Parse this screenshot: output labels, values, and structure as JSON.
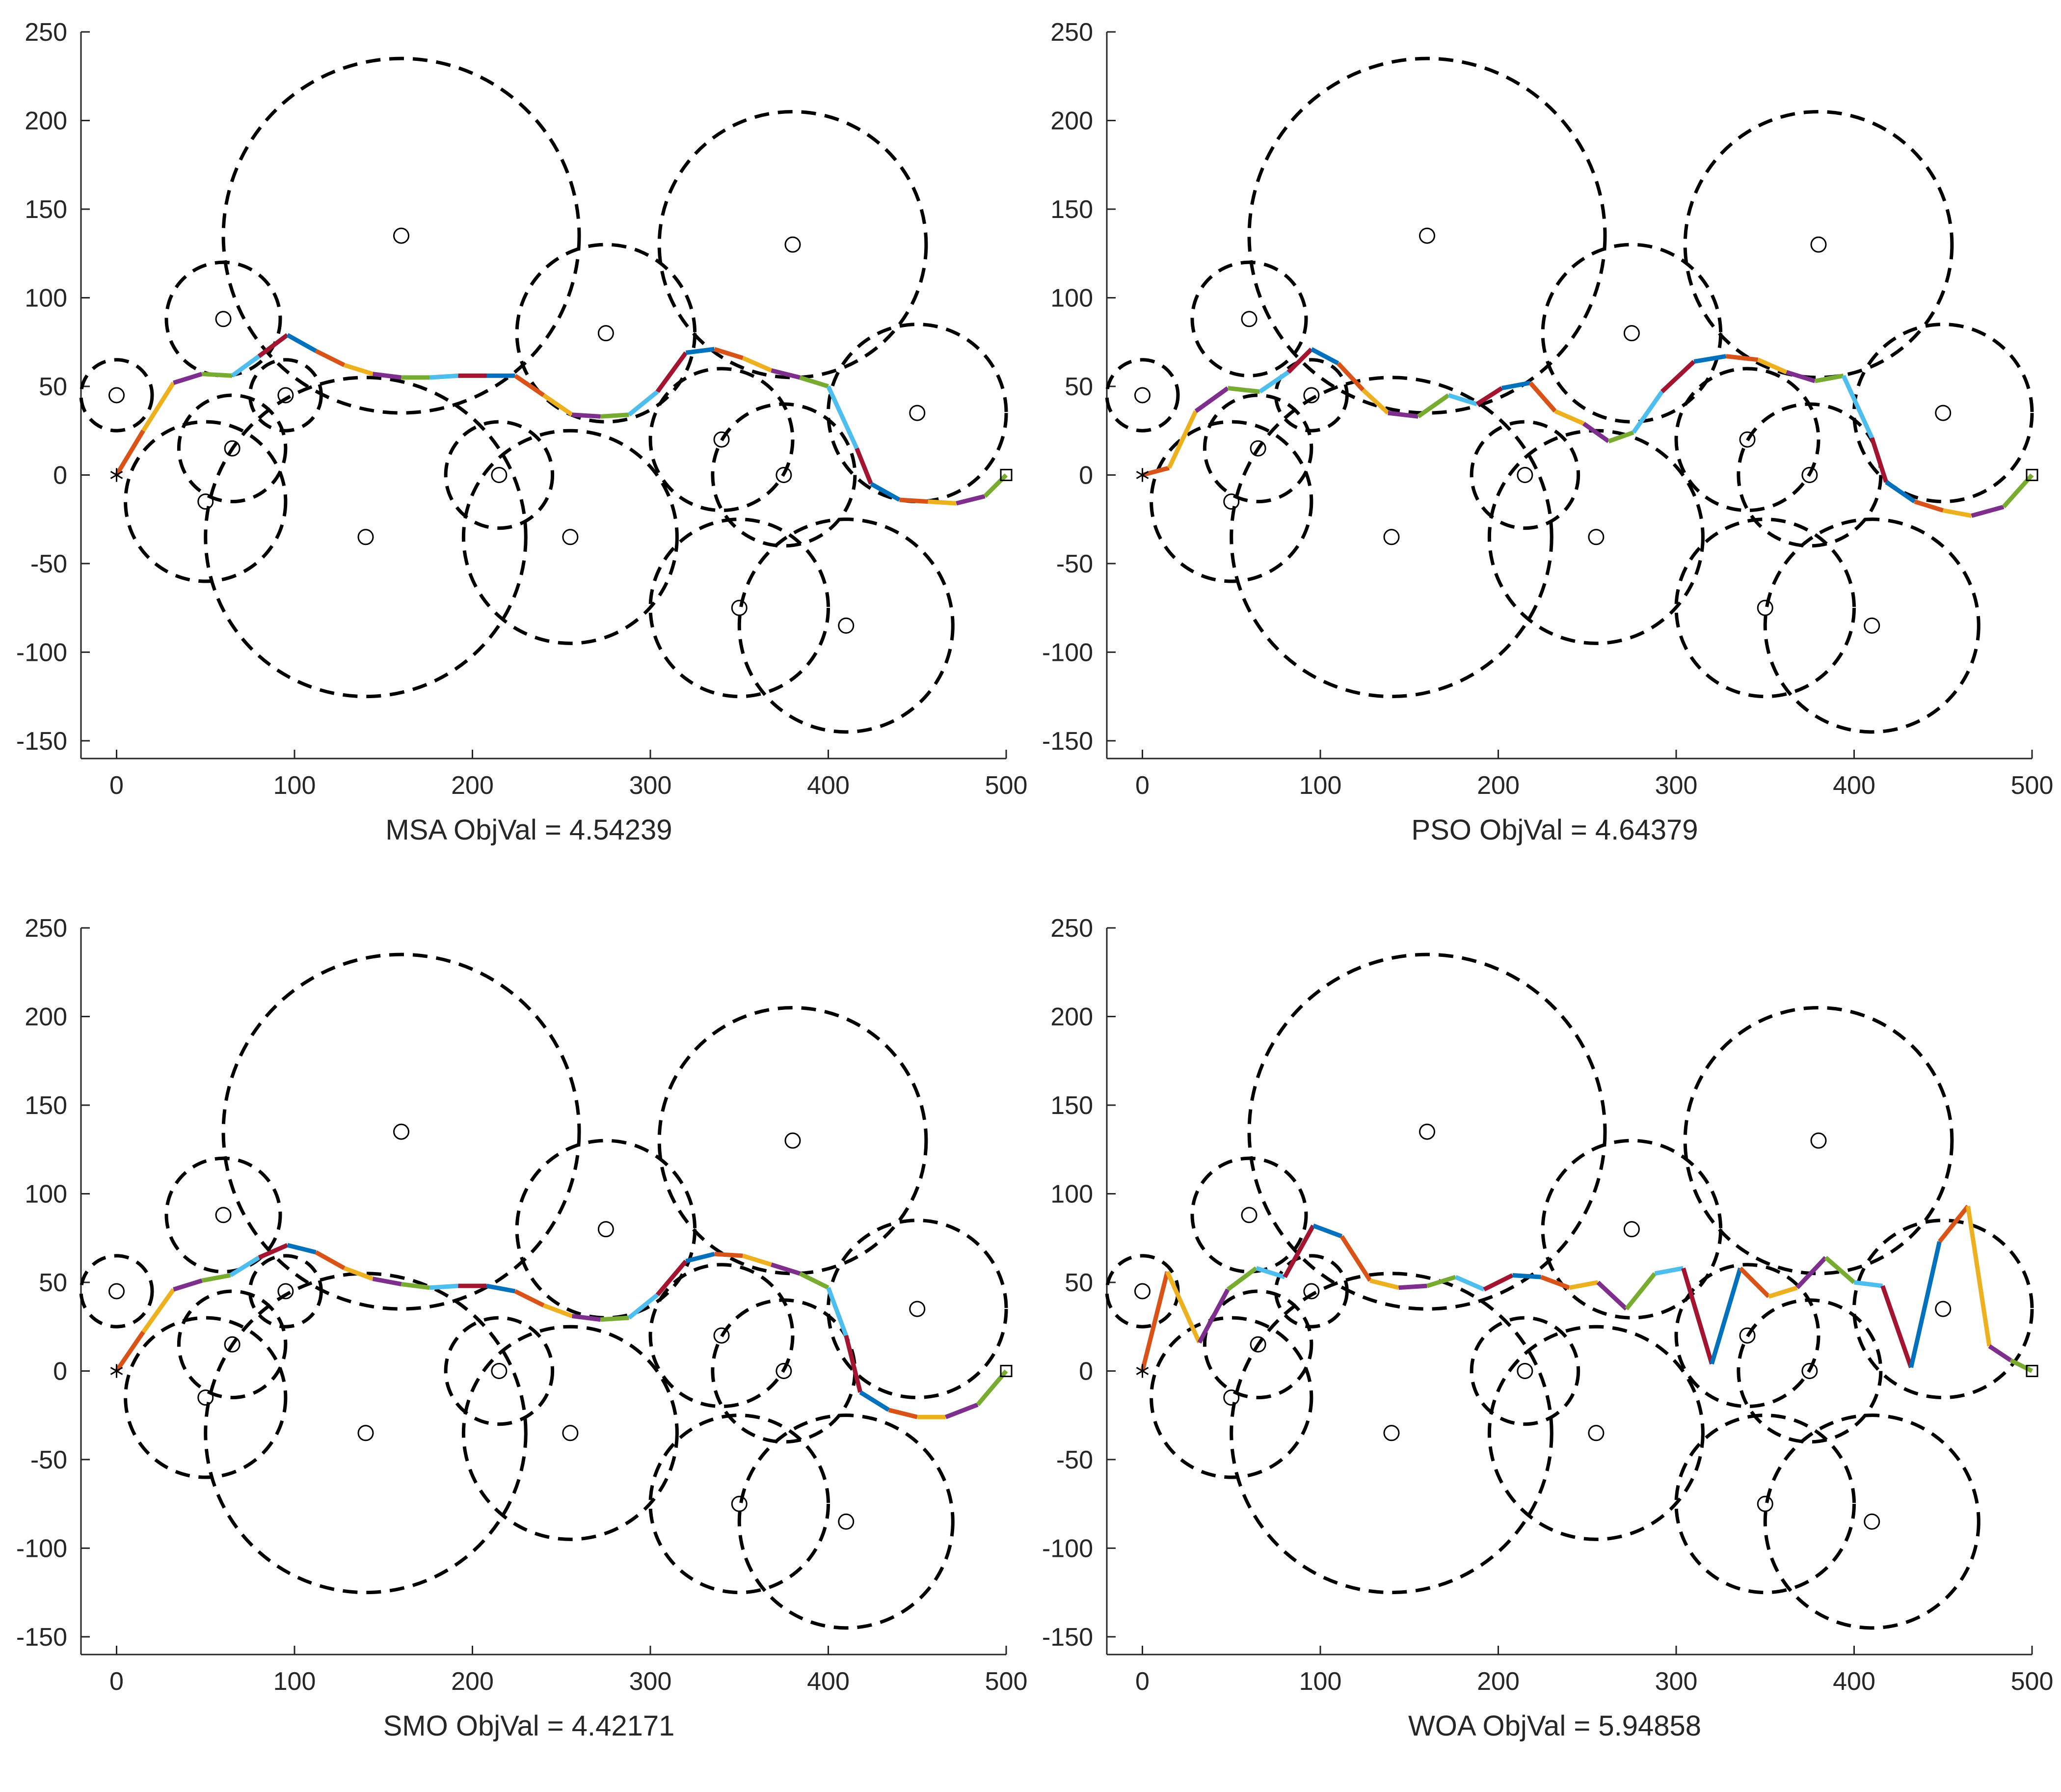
{
  "colors": {
    "segment_palette": [
      "#0072BD",
      "#D95319",
      "#EDB120",
      "#7E2F8E",
      "#77AC30",
      "#4DBEEE",
      "#A2142F"
    ],
    "circle": "#000000",
    "axis": "#262626"
  },
  "chart_data": [
    {
      "type": "line",
      "algorithm": "MSA",
      "objval": "4.54239",
      "xlabel": "MSA  ObjVal = 4.54239",
      "xlim": [
        -20,
        500
      ],
      "ylim": [
        -160,
        250
      ],
      "xticks": [
        0,
        100,
        200,
        300,
        400,
        500
      ],
      "yticks": [
        -150,
        -100,
        -50,
        0,
        50,
        100,
        150,
        200,
        250
      ],
      "start": [
        0,
        0
      ],
      "goal": [
        500,
        0
      ],
      "obstacles": [
        {
          "x": 0,
          "y": 45,
          "r": 20
        },
        {
          "x": 60,
          "y": 88,
          "r": 32
        },
        {
          "x": 50,
          "y": -15,
          "r": 45
        },
        {
          "x": 65,
          "y": 15,
          "r": 30
        },
        {
          "x": 95,
          "y": 45,
          "r": 20
        },
        {
          "x": 140,
          "y": -35,
          "r": 90
        },
        {
          "x": 160,
          "y": 135,
          "r": 100
        },
        {
          "x": 215,
          "y": 0,
          "r": 30
        },
        {
          "x": 255,
          "y": -35,
          "r": 60
        },
        {
          "x": 275,
          "y": 80,
          "r": 50
        },
        {
          "x": 340,
          "y": 20,
          "r": 40
        },
        {
          "x": 350,
          "y": -75,
          "r": 50
        },
        {
          "x": 375,
          "y": 0,
          "r": 40
        },
        {
          "x": 380,
          "y": 130,
          "r": 75
        },
        {
          "x": 410,
          "y": -85,
          "r": 60
        },
        {
          "x": 450,
          "y": 35,
          "r": 50
        }
      ],
      "path": [
        {
          "x": 0,
          "y": 0
        },
        {
          "x": 15,
          "y": 25
        },
        {
          "x": 32,
          "y": 52
        },
        {
          "x": 48,
          "y": 57
        },
        {
          "x": 65,
          "y": 56
        },
        {
          "x": 80,
          "y": 67
        },
        {
          "x": 96,
          "y": 79
        },
        {
          "x": 112,
          "y": 70
        },
        {
          "x": 128,
          "y": 62
        },
        {
          "x": 144,
          "y": 57
        },
        {
          "x": 160,
          "y": 55
        },
        {
          "x": 176,
          "y": 55
        },
        {
          "x": 192,
          "y": 56
        },
        {
          "x": 208,
          "y": 56
        },
        {
          "x": 224,
          "y": 56
        },
        {
          "x": 240,
          "y": 45
        },
        {
          "x": 256,
          "y": 34
        },
        {
          "x": 272,
          "y": 33
        },
        {
          "x": 288,
          "y": 34
        },
        {
          "x": 304,
          "y": 47
        },
        {
          "x": 320,
          "y": 69
        },
        {
          "x": 336,
          "y": 71
        },
        {
          "x": 352,
          "y": 66
        },
        {
          "x": 368,
          "y": 59
        },
        {
          "x": 384,
          "y": 55
        },
        {
          "x": 400,
          "y": 50
        },
        {
          "x": 416,
          "y": 15
        },
        {
          "x": 424,
          "y": -5
        },
        {
          "x": 440,
          "y": -14
        },
        {
          "x": 456,
          "y": -15
        },
        {
          "x": 472,
          "y": -16
        },
        {
          "x": 488,
          "y": -12
        },
        {
          "x": 500,
          "y": 0
        }
      ]
    },
    {
      "type": "line",
      "algorithm": "PSO",
      "objval": "4.64379",
      "xlabel": "PSO  ObjVal = 4.64379",
      "xlim": [
        -20,
        500
      ],
      "ylim": [
        -160,
        250
      ],
      "xticks": [
        0,
        100,
        200,
        300,
        400,
        500
      ],
      "yticks": [
        -150,
        -100,
        -50,
        0,
        50,
        100,
        150,
        200,
        250
      ],
      "start": [
        0,
        0
      ],
      "goal": [
        500,
        0
      ],
      "obstacles": [
        {
          "x": 0,
          "y": 45,
          "r": 20
        },
        {
          "x": 60,
          "y": 88,
          "r": 32
        },
        {
          "x": 50,
          "y": -15,
          "r": 45
        },
        {
          "x": 65,
          "y": 15,
          "r": 30
        },
        {
          "x": 95,
          "y": 45,
          "r": 20
        },
        {
          "x": 140,
          "y": -35,
          "r": 90
        },
        {
          "x": 160,
          "y": 135,
          "r": 100
        },
        {
          "x": 215,
          "y": 0,
          "r": 30
        },
        {
          "x": 255,
          "y": -35,
          "r": 60
        },
        {
          "x": 275,
          "y": 80,
          "r": 50
        },
        {
          "x": 340,
          "y": 20,
          "r": 40
        },
        {
          "x": 350,
          "y": -75,
          "r": 50
        },
        {
          "x": 375,
          "y": 0,
          "r": 40
        },
        {
          "x": 380,
          "y": 130,
          "r": 75
        },
        {
          "x": 410,
          "y": -85,
          "r": 60
        },
        {
          "x": 450,
          "y": 35,
          "r": 50
        }
      ],
      "path": [
        {
          "x": 0,
          "y": 0
        },
        {
          "x": 15,
          "y": 4
        },
        {
          "x": 30,
          "y": 36
        },
        {
          "x": 48,
          "y": 49
        },
        {
          "x": 66,
          "y": 47
        },
        {
          "x": 82,
          "y": 58
        },
        {
          "x": 95,
          "y": 71
        },
        {
          "x": 110,
          "y": 63
        },
        {
          "x": 124,
          "y": 48
        },
        {
          "x": 138,
          "y": 35
        },
        {
          "x": 155,
          "y": 33
        },
        {
          "x": 172,
          "y": 45
        },
        {
          "x": 188,
          "y": 40
        },
        {
          "x": 202,
          "y": 49
        },
        {
          "x": 218,
          "y": 52
        },
        {
          "x": 232,
          "y": 36
        },
        {
          "x": 248,
          "y": 29
        },
        {
          "x": 262,
          "y": 19
        },
        {
          "x": 276,
          "y": 24
        },
        {
          "x": 292,
          "y": 47
        },
        {
          "x": 310,
          "y": 64
        },
        {
          "x": 328,
          "y": 67
        },
        {
          "x": 346,
          "y": 65
        },
        {
          "x": 362,
          "y": 58
        },
        {
          "x": 378,
          "y": 53
        },
        {
          "x": 394,
          "y": 56
        },
        {
          "x": 410,
          "y": 21
        },
        {
          "x": 418,
          "y": -4
        },
        {
          "x": 434,
          "y": -15
        },
        {
          "x": 450,
          "y": -20
        },
        {
          "x": 466,
          "y": -23
        },
        {
          "x": 484,
          "y": -18
        },
        {
          "x": 500,
          "y": 0
        }
      ]
    },
    {
      "type": "line",
      "algorithm": "SMO",
      "objval": "4.42171",
      "xlabel": "SMO  ObjVal = 4.42171",
      "xlim": [
        -20,
        500
      ],
      "ylim": [
        -160,
        250
      ],
      "xticks": [
        0,
        100,
        200,
        300,
        400,
        500
      ],
      "yticks": [
        -150,
        -100,
        -50,
        0,
        50,
        100,
        150,
        200,
        250
      ],
      "start": [
        0,
        0
      ],
      "goal": [
        500,
        0
      ],
      "obstacles": [
        {
          "x": 0,
          "y": 45,
          "r": 20
        },
        {
          "x": 60,
          "y": 88,
          "r": 32
        },
        {
          "x": 50,
          "y": -15,
          "r": 45
        },
        {
          "x": 65,
          "y": 15,
          "r": 30
        },
        {
          "x": 95,
          "y": 45,
          "r": 20
        },
        {
          "x": 140,
          "y": -35,
          "r": 90
        },
        {
          "x": 160,
          "y": 135,
          "r": 100
        },
        {
          "x": 215,
          "y": 0,
          "r": 30
        },
        {
          "x": 255,
          "y": -35,
          "r": 60
        },
        {
          "x": 275,
          "y": 80,
          "r": 50
        },
        {
          "x": 340,
          "y": 20,
          "r": 40
        },
        {
          "x": 350,
          "y": -75,
          "r": 50
        },
        {
          "x": 375,
          "y": 0,
          "r": 40
        },
        {
          "x": 380,
          "y": 130,
          "r": 75
        },
        {
          "x": 410,
          "y": -85,
          "r": 60
        },
        {
          "x": 450,
          "y": 35,
          "r": 50
        }
      ],
      "path": [
        {
          "x": 0,
          "y": 0
        },
        {
          "x": 15,
          "y": 22
        },
        {
          "x": 32,
          "y": 46
        },
        {
          "x": 48,
          "y": 51
        },
        {
          "x": 64,
          "y": 54
        },
        {
          "x": 80,
          "y": 64
        },
        {
          "x": 96,
          "y": 71
        },
        {
          "x": 112,
          "y": 67
        },
        {
          "x": 128,
          "y": 58
        },
        {
          "x": 144,
          "y": 52
        },
        {
          "x": 160,
          "y": 49
        },
        {
          "x": 176,
          "y": 47
        },
        {
          "x": 192,
          "y": 48
        },
        {
          "x": 208,
          "y": 48
        },
        {
          "x": 224,
          "y": 45
        },
        {
          "x": 240,
          "y": 37
        },
        {
          "x": 256,
          "y": 31
        },
        {
          "x": 272,
          "y": 29
        },
        {
          "x": 288,
          "y": 30
        },
        {
          "x": 304,
          "y": 43
        },
        {
          "x": 320,
          "y": 62
        },
        {
          "x": 336,
          "y": 66
        },
        {
          "x": 352,
          "y": 65
        },
        {
          "x": 368,
          "y": 60
        },
        {
          "x": 384,
          "y": 55
        },
        {
          "x": 400,
          "y": 47
        },
        {
          "x": 410,
          "y": 20
        },
        {
          "x": 418,
          "y": -12
        },
        {
          "x": 434,
          "y": -22
        },
        {
          "x": 450,
          "y": -26
        },
        {
          "x": 466,
          "y": -26
        },
        {
          "x": 484,
          "y": -19
        },
        {
          "x": 500,
          "y": 0
        }
      ]
    },
    {
      "type": "line",
      "algorithm": "WOA",
      "objval": "5.94858",
      "xlabel": "WOA  ObjVal = 5.94858",
      "xlim": [
        -20,
        500
      ],
      "ylim": [
        -160,
        250
      ],
      "xticks": [
        0,
        100,
        200,
        300,
        400,
        500
      ],
      "yticks": [
        -150,
        -100,
        -50,
        0,
        50,
        100,
        150,
        200,
        250
      ],
      "start": [
        0,
        0
      ],
      "goal": [
        500,
        0
      ],
      "obstacles": [
        {
          "x": 0,
          "y": 45,
          "r": 20
        },
        {
          "x": 60,
          "y": 88,
          "r": 32
        },
        {
          "x": 50,
          "y": -15,
          "r": 45
        },
        {
          "x": 65,
          "y": 15,
          "r": 30
        },
        {
          "x": 95,
          "y": 45,
          "r": 20
        },
        {
          "x": 140,
          "y": -35,
          "r": 90
        },
        {
          "x": 160,
          "y": 135,
          "r": 100
        },
        {
          "x": 215,
          "y": 0,
          "r": 30
        },
        {
          "x": 255,
          "y": -35,
          "r": 60
        },
        {
          "x": 275,
          "y": 80,
          "r": 50
        },
        {
          "x": 340,
          "y": 20,
          "r": 40
        },
        {
          "x": 350,
          "y": -75,
          "r": 50
        },
        {
          "x": 375,
          "y": 0,
          "r": 40
        },
        {
          "x": 380,
          "y": 130,
          "r": 75
        },
        {
          "x": 410,
          "y": -85,
          "r": 60
        },
        {
          "x": 450,
          "y": 35,
          "r": 50
        }
      ],
      "path": [
        {
          "x": 0,
          "y": 0
        },
        {
          "x": 14,
          "y": 56
        },
        {
          "x": 32,
          "y": 16
        },
        {
          "x": 48,
          "y": 46
        },
        {
          "x": 64,
          "y": 58
        },
        {
          "x": 80,
          "y": 53
        },
        {
          "x": 96,
          "y": 82
        },
        {
          "x": 112,
          "y": 76
        },
        {
          "x": 128,
          "y": 51
        },
        {
          "x": 144,
          "y": 47
        },
        {
          "x": 160,
          "y": 48
        },
        {
          "x": 176,
          "y": 53
        },
        {
          "x": 192,
          "y": 46
        },
        {
          "x": 208,
          "y": 54
        },
        {
          "x": 224,
          "y": 53
        },
        {
          "x": 240,
          "y": 47
        },
        {
          "x": 256,
          "y": 50
        },
        {
          "x": 272,
          "y": 35
        },
        {
          "x": 288,
          "y": 55
        },
        {
          "x": 304,
          "y": 58
        },
        {
          "x": 320,
          "y": 4
        },
        {
          "x": 336,
          "y": 58
        },
        {
          "x": 352,
          "y": 42
        },
        {
          "x": 368,
          "y": 47
        },
        {
          "x": 384,
          "y": 64
        },
        {
          "x": 400,
          "y": 50
        },
        {
          "x": 416,
          "y": 48
        },
        {
          "x": 432,
          "y": 2
        },
        {
          "x": 448,
          "y": 73
        },
        {
          "x": 464,
          "y": 93
        },
        {
          "x": 476,
          "y": 14
        },
        {
          "x": 488,
          "y": 6
        },
        {
          "x": 500,
          "y": 0
        }
      ]
    }
  ]
}
